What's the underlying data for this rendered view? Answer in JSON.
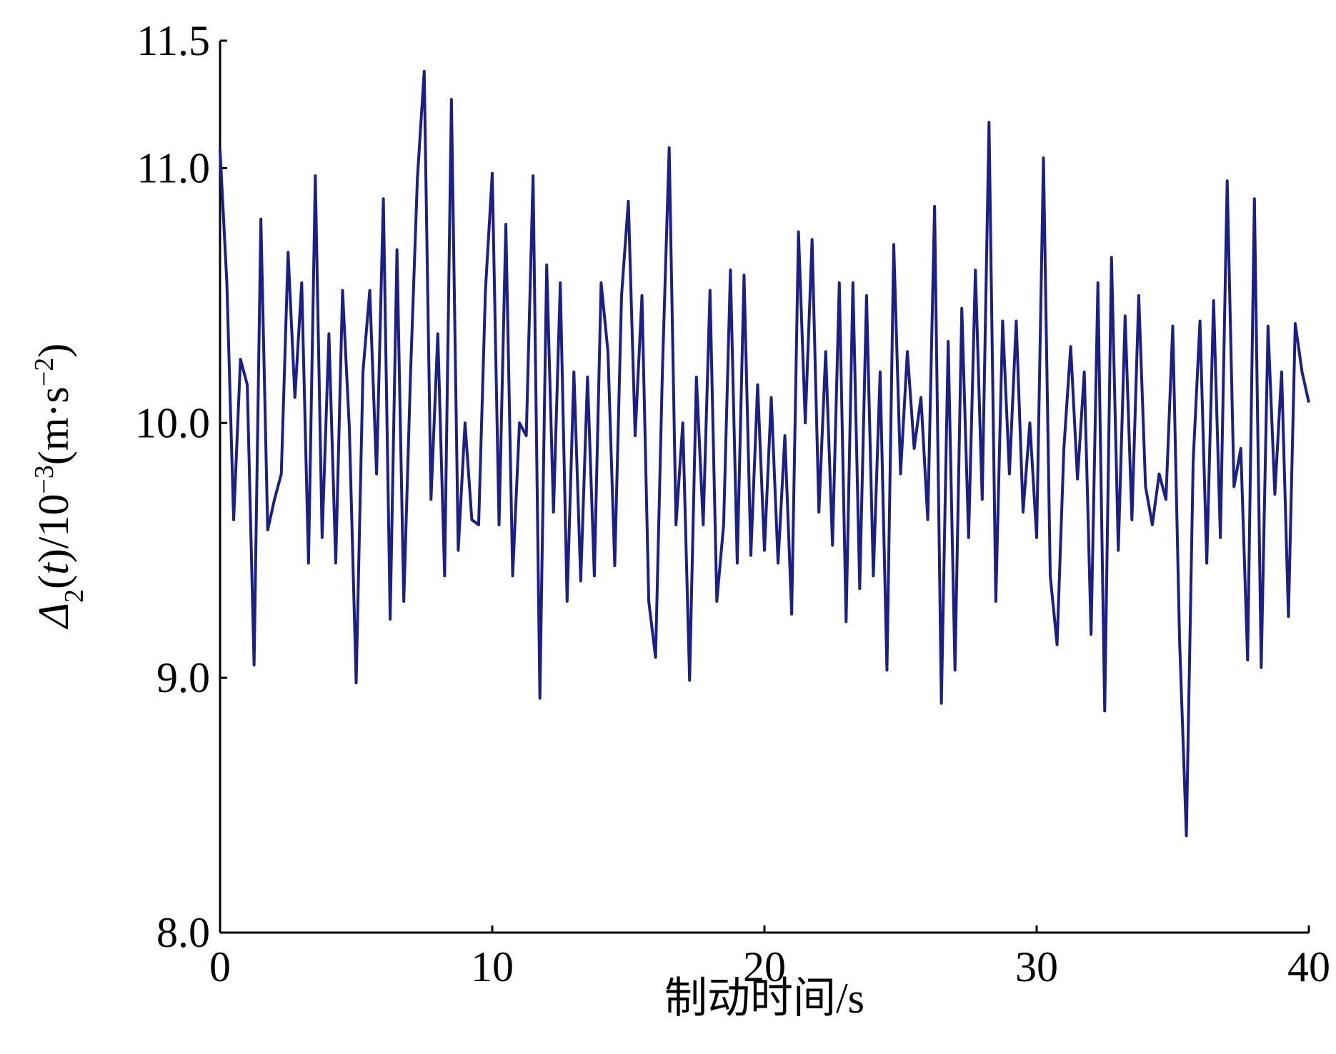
{
  "chart_data": {
    "type": "line",
    "y_label": [
      "Δ",
      "2",
      "(",
      "t",
      ")/10",
      "−3",
      "(m·s",
      "−2",
      ")"
    ],
    "x_label": "制动时间/s",
    "xlim": [
      0,
      40
    ],
    "xticks": [
      0,
      10,
      20,
      30,
      40
    ],
    "ylim": [
      8.0,
      11.5
    ],
    "yticks": [
      {
        "value": 8.0,
        "label": "8.0"
      },
      {
        "value": 9.0,
        "label": "9.0"
      },
      {
        "value": 10.0,
        "label": "10.0"
      },
      {
        "value": 11.0,
        "label": "11.0"
      },
      11.5
    ],
    "series": [
      {
        "color": "#1a1f8c",
        "x": [
          0,
          0.25,
          0.5,
          0.75,
          1,
          1.25,
          1.5,
          1.75,
          2,
          2.25,
          2.5,
          2.75,
          3,
          3.25,
          3.5,
          3.75,
          4,
          4.25,
          4.5,
          4.75,
          5,
          5.25,
          5.5,
          5.75,
          6,
          6.25,
          6.5,
          6.75,
          7,
          7.25,
          7.5,
          7.75,
          8,
          8.25,
          8.5,
          8.75,
          9,
          9.25,
          9.5,
          9.75,
          10,
          10.25,
          10.5,
          10.75,
          11,
          11.25,
          11.5,
          11.75,
          12,
          12.25,
          12.5,
          12.75,
          13,
          13.25,
          13.5,
          13.75,
          14,
          14.25,
          14.5,
          14.75,
          15,
          15.25,
          15.5,
          15.75,
          16,
          16.25,
          16.5,
          16.75,
          17,
          17.25,
          17.5,
          17.75,
          18,
          18.25,
          18.5,
          18.75,
          19,
          19.25,
          19.5,
          19.75,
          20,
          20.25,
          20.5,
          20.75,
          21,
          21.25,
          21.5,
          21.75,
          22,
          22.25,
          22.5,
          22.75,
          23,
          23.25,
          23.5,
          23.75,
          24,
          24.25,
          24.5,
          24.75,
          25,
          25.25,
          25.5,
          25.75,
          26,
          26.25,
          26.5,
          26.75,
          27,
          27.25,
          27.5,
          27.75,
          28,
          28.25,
          28.5,
          28.75,
          29,
          29.25,
          29.5,
          29.75,
          30,
          30.25,
          30.5,
          30.75,
          31,
          31.25,
          31.5,
          31.75,
          32,
          32.25,
          32.5,
          32.75,
          33,
          33.25,
          33.5,
          33.75,
          34,
          34.25,
          34.5,
          34.75,
          35,
          35.25,
          35.5,
          35.75,
          36,
          36.25,
          36.5,
          36.75,
          37,
          37.25,
          37.5,
          37.75,
          38,
          38.25,
          38.5,
          38.75,
          39,
          39.25,
          39.5,
          39.75,
          40
        ],
        "values": [
          11.07,
          10.55,
          9.62,
          10.25,
          10.15,
          9.05,
          10.8,
          9.58,
          9.7,
          9.8,
          10.67,
          10.1,
          10.55,
          9.45,
          10.97,
          9.55,
          10.35,
          9.45,
          10.52,
          9.98,
          8.98,
          10.2,
          10.52,
          9.8,
          10.88,
          9.23,
          10.68,
          9.3,
          10.2,
          10.96,
          11.38,
          9.7,
          10.35,
          9.4,
          11.27,
          9.5,
          10.0,
          9.62,
          9.6,
          10.52,
          10.98,
          9.6,
          10.78,
          9.4,
          10.0,
          9.95,
          10.97,
          8.92,
          10.62,
          9.65,
          10.55,
          9.3,
          10.2,
          9.38,
          10.18,
          9.4,
          10.55,
          10.28,
          9.44,
          10.5,
          10.87,
          9.95,
          10.5,
          9.3,
          9.08,
          10.2,
          11.08,
          9.6,
          10.0,
          8.99,
          10.18,
          9.6,
          10.52,
          9.3,
          9.6,
          10.6,
          9.45,
          10.58,
          9.48,
          10.15,
          9.5,
          10.1,
          9.45,
          9.95,
          9.25,
          10.75,
          10.0,
          10.72,
          9.65,
          10.28,
          9.52,
          10.55,
          9.22,
          10.55,
          9.35,
          10.5,
          9.4,
          10.2,
          9.03,
          10.7,
          9.8,
          10.28,
          9.9,
          10.1,
          9.62,
          10.85,
          8.9,
          10.32,
          9.03,
          10.45,
          9.55,
          10.6,
          9.7,
          11.18,
          9.3,
          10.4,
          9.8,
          10.4,
          9.65,
          10.0,
          9.55,
          11.04,
          9.4,
          9.13,
          9.9,
          10.3,
          9.78,
          10.2,
          9.17,
          10.55,
          8.87,
          10.65,
          9.5,
          10.42,
          9.62,
          10.5,
          9.75,
          9.6,
          9.8,
          9.7,
          10.38,
          9.15,
          8.38,
          9.85,
          10.4,
          9.45,
          10.48,
          9.55,
          10.95,
          9.75,
          9.9,
          9.07,
          10.88,
          9.04,
          10.38,
          9.72,
          10.2,
          9.24,
          10.39,
          10.2,
          10.08
        ]
      }
    ]
  }
}
